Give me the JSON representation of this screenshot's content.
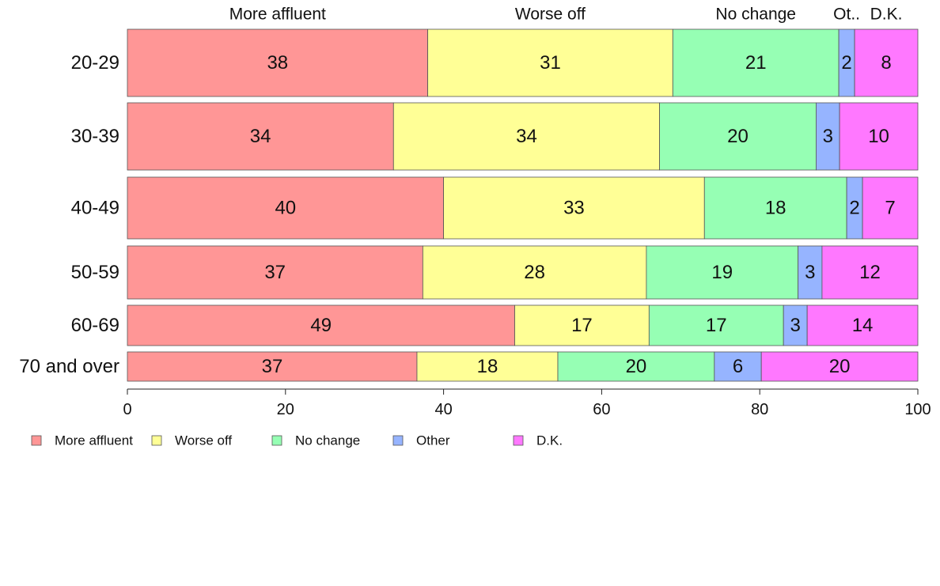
{
  "chart_data": {
    "type": "bar",
    "orientation": "horizontal",
    "stacked": true,
    "categories": [
      "20-29",
      "30-39",
      "40-49",
      "50-59",
      "60-69",
      "70 and over"
    ],
    "series": [
      {
        "name": "More affluent",
        "color": "#ff9696",
        "values": [
          38,
          34,
          40,
          37,
          49,
          37
        ]
      },
      {
        "name": "Worse off",
        "color": "#ffff96",
        "values": [
          31,
          34,
          33,
          28,
          17,
          18
        ]
      },
      {
        "name": "No change",
        "color": "#96ffb4",
        "values": [
          21,
          20,
          18,
          19,
          17,
          20
        ]
      },
      {
        "name": "Other",
        "color": "#96b4ff",
        "values": [
          2,
          3,
          2,
          3,
          3,
          6
        ]
      },
      {
        "name": "D.K.",
        "color": "#ff78ff",
        "values": [
          8,
          10,
          7,
          12,
          14,
          20
        ]
      }
    ],
    "top_labels": [
      "More affluent",
      "Worse off",
      "No change",
      "Ot..",
      "D.K."
    ],
    "xlim": [
      0,
      100
    ],
    "xticks": [
      "0",
      "20",
      "40",
      "60",
      "80",
      "100"
    ],
    "legend_position": "bottom-left",
    "grid": false
  }
}
